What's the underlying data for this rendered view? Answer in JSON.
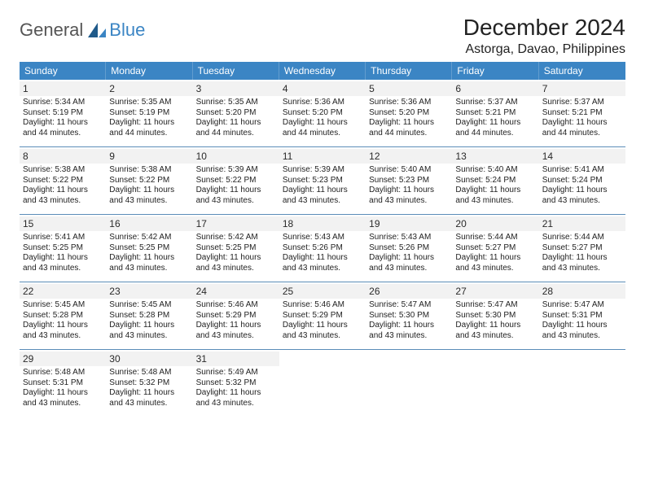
{
  "logo": {
    "textA": "General",
    "textB": "Blue"
  },
  "title": {
    "month": "December 2024",
    "location": "Astorga, Davao, Philippines"
  },
  "colors": {
    "header_blue": "#3b85c4",
    "divider_blue": "#5b8db8",
    "cell_bg": "#f2f2f2",
    "text": "#2a2a2a",
    "background": "#ffffff"
  },
  "dow": [
    "Sunday",
    "Monday",
    "Tuesday",
    "Wednesday",
    "Thursday",
    "Friday",
    "Saturday"
  ],
  "weeks": [
    [
      {
        "n": "1",
        "sr": "Sunrise: 5:34 AM",
        "ss": "Sunset: 5:19 PM",
        "d1": "Daylight: 11 hours",
        "d2": "and 44 minutes."
      },
      {
        "n": "2",
        "sr": "Sunrise: 5:35 AM",
        "ss": "Sunset: 5:19 PM",
        "d1": "Daylight: 11 hours",
        "d2": "and 44 minutes."
      },
      {
        "n": "3",
        "sr": "Sunrise: 5:35 AM",
        "ss": "Sunset: 5:20 PM",
        "d1": "Daylight: 11 hours",
        "d2": "and 44 minutes."
      },
      {
        "n": "4",
        "sr": "Sunrise: 5:36 AM",
        "ss": "Sunset: 5:20 PM",
        "d1": "Daylight: 11 hours",
        "d2": "and 44 minutes."
      },
      {
        "n": "5",
        "sr": "Sunrise: 5:36 AM",
        "ss": "Sunset: 5:20 PM",
        "d1": "Daylight: 11 hours",
        "d2": "and 44 minutes."
      },
      {
        "n": "6",
        "sr": "Sunrise: 5:37 AM",
        "ss": "Sunset: 5:21 PM",
        "d1": "Daylight: 11 hours",
        "d2": "and 44 minutes."
      },
      {
        "n": "7",
        "sr": "Sunrise: 5:37 AM",
        "ss": "Sunset: 5:21 PM",
        "d1": "Daylight: 11 hours",
        "d2": "and 44 minutes."
      }
    ],
    [
      {
        "n": "8",
        "sr": "Sunrise: 5:38 AM",
        "ss": "Sunset: 5:22 PM",
        "d1": "Daylight: 11 hours",
        "d2": "and 43 minutes."
      },
      {
        "n": "9",
        "sr": "Sunrise: 5:38 AM",
        "ss": "Sunset: 5:22 PM",
        "d1": "Daylight: 11 hours",
        "d2": "and 43 minutes."
      },
      {
        "n": "10",
        "sr": "Sunrise: 5:39 AM",
        "ss": "Sunset: 5:22 PM",
        "d1": "Daylight: 11 hours",
        "d2": "and 43 minutes."
      },
      {
        "n": "11",
        "sr": "Sunrise: 5:39 AM",
        "ss": "Sunset: 5:23 PM",
        "d1": "Daylight: 11 hours",
        "d2": "and 43 minutes."
      },
      {
        "n": "12",
        "sr": "Sunrise: 5:40 AM",
        "ss": "Sunset: 5:23 PM",
        "d1": "Daylight: 11 hours",
        "d2": "and 43 minutes."
      },
      {
        "n": "13",
        "sr": "Sunrise: 5:40 AM",
        "ss": "Sunset: 5:24 PM",
        "d1": "Daylight: 11 hours",
        "d2": "and 43 minutes."
      },
      {
        "n": "14",
        "sr": "Sunrise: 5:41 AM",
        "ss": "Sunset: 5:24 PM",
        "d1": "Daylight: 11 hours",
        "d2": "and 43 minutes."
      }
    ],
    [
      {
        "n": "15",
        "sr": "Sunrise: 5:41 AM",
        "ss": "Sunset: 5:25 PM",
        "d1": "Daylight: 11 hours",
        "d2": "and 43 minutes."
      },
      {
        "n": "16",
        "sr": "Sunrise: 5:42 AM",
        "ss": "Sunset: 5:25 PM",
        "d1": "Daylight: 11 hours",
        "d2": "and 43 minutes."
      },
      {
        "n": "17",
        "sr": "Sunrise: 5:42 AM",
        "ss": "Sunset: 5:25 PM",
        "d1": "Daylight: 11 hours",
        "d2": "and 43 minutes."
      },
      {
        "n": "18",
        "sr": "Sunrise: 5:43 AM",
        "ss": "Sunset: 5:26 PM",
        "d1": "Daylight: 11 hours",
        "d2": "and 43 minutes."
      },
      {
        "n": "19",
        "sr": "Sunrise: 5:43 AM",
        "ss": "Sunset: 5:26 PM",
        "d1": "Daylight: 11 hours",
        "d2": "and 43 minutes."
      },
      {
        "n": "20",
        "sr": "Sunrise: 5:44 AM",
        "ss": "Sunset: 5:27 PM",
        "d1": "Daylight: 11 hours",
        "d2": "and 43 minutes."
      },
      {
        "n": "21",
        "sr": "Sunrise: 5:44 AM",
        "ss": "Sunset: 5:27 PM",
        "d1": "Daylight: 11 hours",
        "d2": "and 43 minutes."
      }
    ],
    [
      {
        "n": "22",
        "sr": "Sunrise: 5:45 AM",
        "ss": "Sunset: 5:28 PM",
        "d1": "Daylight: 11 hours",
        "d2": "and 43 minutes."
      },
      {
        "n": "23",
        "sr": "Sunrise: 5:45 AM",
        "ss": "Sunset: 5:28 PM",
        "d1": "Daylight: 11 hours",
        "d2": "and 43 minutes."
      },
      {
        "n": "24",
        "sr": "Sunrise: 5:46 AM",
        "ss": "Sunset: 5:29 PM",
        "d1": "Daylight: 11 hours",
        "d2": "and 43 minutes."
      },
      {
        "n": "25",
        "sr": "Sunrise: 5:46 AM",
        "ss": "Sunset: 5:29 PM",
        "d1": "Daylight: 11 hours",
        "d2": "and 43 minutes."
      },
      {
        "n": "26",
        "sr": "Sunrise: 5:47 AM",
        "ss": "Sunset: 5:30 PM",
        "d1": "Daylight: 11 hours",
        "d2": "and 43 minutes."
      },
      {
        "n": "27",
        "sr": "Sunrise: 5:47 AM",
        "ss": "Sunset: 5:30 PM",
        "d1": "Daylight: 11 hours",
        "d2": "and 43 minutes."
      },
      {
        "n": "28",
        "sr": "Sunrise: 5:47 AM",
        "ss": "Sunset: 5:31 PM",
        "d1": "Daylight: 11 hours",
        "d2": "and 43 minutes."
      }
    ],
    [
      {
        "n": "29",
        "sr": "Sunrise: 5:48 AM",
        "ss": "Sunset: 5:31 PM",
        "d1": "Daylight: 11 hours",
        "d2": "and 43 minutes."
      },
      {
        "n": "30",
        "sr": "Sunrise: 5:48 AM",
        "ss": "Sunset: 5:32 PM",
        "d1": "Daylight: 11 hours",
        "d2": "and 43 minutes."
      },
      {
        "n": "31",
        "sr": "Sunrise: 5:49 AM",
        "ss": "Sunset: 5:32 PM",
        "d1": "Daylight: 11 hours",
        "d2": "and 43 minutes."
      },
      {
        "empty": true
      },
      {
        "empty": true
      },
      {
        "empty": true
      },
      {
        "empty": true
      }
    ]
  ]
}
